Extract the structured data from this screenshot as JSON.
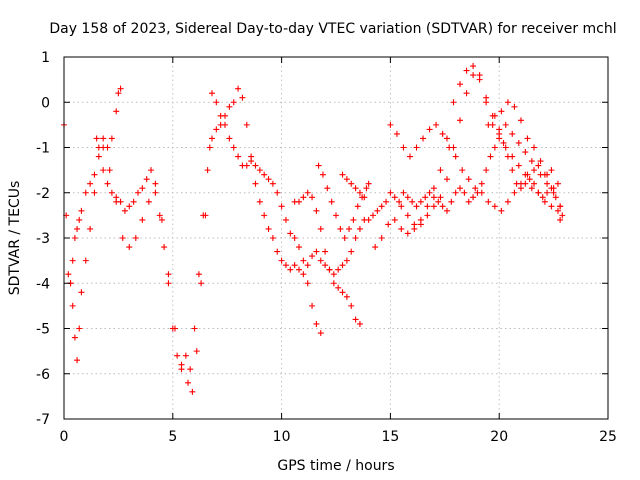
{
  "chart_data": {
    "type": "scatter",
    "title": "Day 158 of 2023, Sidereal Day-to-day VTEC variation (SDTVAR) for receiver mchl",
    "xlabel": "GPS time / hours",
    "ylabel": "SDTVAR / TECUs",
    "xlim": [
      0,
      25
    ],
    "ylim": [
      -7,
      1
    ],
    "xticks": [
      0,
      5,
      10,
      15,
      20,
      25
    ],
    "yticks": [
      -7,
      -6,
      -5,
      -4,
      -3,
      -2,
      -1,
      0,
      1
    ],
    "grid": true,
    "legend": "none",
    "marker": "plus",
    "color": "#ff0000",
    "series": [
      {
        "x": [
          0.0,
          0.1,
          0.2,
          0.3,
          0.4,
          0.5,
          0.6,
          0.7,
          0.8,
          1.0,
          1.2,
          1.4,
          1.6,
          1.8,
          2.0,
          2.2,
          2.4,
          2.6,
          2.8,
          3.0,
          3.2,
          3.4,
          3.6,
          3.8,
          4.0,
          4.2,
          4.4,
          4.6,
          4.8,
          5.0,
          5.2,
          5.4,
          5.6,
          5.8,
          6.0,
          6.2,
          6.4,
          6.6,
          6.8,
          7.0,
          7.2,
          7.4,
          7.6,
          7.8,
          8.0,
          8.2,
          8.4,
          8.6,
          8.8,
          9.0,
          9.2,
          9.4,
          9.6,
          9.8,
          10.0,
          10.2,
          10.4,
          10.6,
          10.8,
          11.0,
          11.2,
          11.4,
          11.6,
          11.8,
          12.0,
          12.2,
          12.4,
          12.6,
          12.8,
          13.0,
          13.2,
          13.4,
          13.6,
          13.8,
          14.0,
          14.2,
          14.4,
          14.6,
          14.8,
          15.0,
          15.2,
          15.4,
          15.6,
          15.8,
          16.0,
          16.2,
          16.4,
          16.6,
          16.8,
          17.0,
          17.2,
          17.4,
          17.6,
          17.8,
          18.0,
          18.2,
          18.4,
          18.6,
          18.8,
          19.0,
          19.2,
          19.4,
          19.6,
          19.8,
          20.0,
          20.2,
          20.4,
          20.6,
          20.8,
          21.0,
          21.2,
          21.4,
          21.6,
          21.8,
          22.0,
          22.2,
          22.4,
          22.6,
          22.8
        ],
        "y": [
          -0.5,
          -2.5,
          -3.8,
          -4.0,
          -3.5,
          -3.0,
          -2.8,
          -2.6,
          -2.4,
          -2.0,
          -1.8,
          -1.6,
          -1.2,
          -1.5,
          -1.8,
          -2.0,
          -2.1,
          -2.2,
          -2.4,
          -2.3,
          -2.2,
          -2.0,
          -1.9,
          -1.7,
          -1.5,
          -1.8,
          -2.5,
          -3.2,
          -4.0,
          -5.0,
          -5.6,
          -5.8,
          -5.6,
          -5.9,
          -5.0,
          -3.8,
          -2.5,
          -1.5,
          -0.8,
          -0.6,
          -0.5,
          -0.3,
          -0.1,
          0.0,
          0.3,
          0.1,
          -0.5,
          -1.2,
          -1.8,
          -2.2,
          -2.5,
          -2.8,
          -3.0,
          -3.3,
          -3.5,
          -3.6,
          -3.7,
          -3.6,
          -3.7,
          -3.8,
          -3.6,
          -3.4,
          -3.3,
          -3.5,
          -3.6,
          -3.7,
          -3.8,
          -3.7,
          -3.6,
          -3.5,
          -3.3,
          -3.0,
          -2.8,
          -2.6,
          -2.6,
          -2.5,
          -2.4,
          -2.3,
          -2.2,
          -2.0,
          -2.1,
          -2.2,
          -2.0,
          -2.1,
          -2.2,
          -2.3,
          -2.2,
          -2.1,
          -2.0,
          -2.1,
          -2.2,
          -2.3,
          -2.4,
          -2.2,
          -2.0,
          -1.9,
          -2.0,
          -2.2,
          -2.1,
          -2.0,
          -1.8,
          -1.5,
          -1.2,
          -1.0,
          -0.8,
          -0.9,
          -1.2,
          -1.5,
          -1.8,
          -1.9,
          -1.8,
          -1.7,
          -1.8,
          -2.0,
          -2.1,
          -2.0,
          -1.9,
          -2.1,
          -2.3
        ]
      },
      {
        "x": [
          0.3,
          0.4,
          0.5,
          0.6,
          0.7,
          0.8,
          1.0,
          1.2,
          1.4,
          1.6,
          1.8,
          2.0,
          2.2,
          2.4,
          2.5,
          2.6
        ],
        "y": [
          -4.0,
          -4.5,
          -5.2,
          -5.7,
          -5.0,
          -4.2,
          -3.5,
          -2.8,
          -2.0,
          -1.0,
          -0.8,
          -1.0,
          -0.8,
          -0.2,
          0.2,
          0.3
        ]
      },
      {
        "x": [
          1.5,
          1.8,
          2.1,
          2.4,
          2.7,
          3.0,
          3.3,
          3.6,
          3.9,
          4.2,
          4.5,
          4.8,
          5.1,
          5.4,
          5.7,
          5.9,
          6.1,
          6.3,
          6.5,
          6.7
        ],
        "y": [
          -0.8,
          -1.0,
          -1.5,
          -2.2,
          -3.0,
          -3.2,
          -3.0,
          -2.6,
          -2.2,
          -2.0,
          -2.6,
          -3.8,
          -5.0,
          -5.9,
          -6.2,
          -6.4,
          -5.5,
          -4.0,
          -2.5,
          -1.0
        ]
      },
      {
        "x": [
          6.8,
          7.0,
          7.2,
          7.4,
          7.6,
          7.8,
          8.0,
          8.2,
          8.4,
          8.6,
          8.8,
          9.0,
          9.2,
          9.4,
          9.6,
          9.8,
          10.0,
          10.2,
          10.4,
          10.6,
          10.8,
          11.0,
          11.2,
          11.4,
          11.6,
          11.8
        ],
        "y": [
          0.2,
          0.0,
          -0.3,
          -0.5,
          -0.8,
          -1.0,
          -1.2,
          -1.4,
          -1.4,
          -1.3,
          -1.4,
          -1.5,
          -1.6,
          -1.7,
          -1.8,
          -2.0,
          -2.3,
          -2.6,
          -2.9,
          -3.0,
          -3.2,
          -3.5,
          -4.0,
          -4.5,
          -4.9,
          -5.1
        ]
      },
      {
        "x": [
          10.6,
          10.8,
          11.0,
          11.2,
          11.4,
          11.6,
          11.8,
          12.0,
          12.2,
          12.4,
          12.6,
          12.8,
          13.0,
          13.2,
          13.4,
          13.6
        ],
        "y": [
          -2.2,
          -2.2,
          -2.1,
          -2.0,
          -2.1,
          -2.4,
          -2.8,
          -3.3,
          -3.7,
          -4.0,
          -4.1,
          -4.2,
          -4.3,
          -4.5,
          -4.8,
          -4.9
        ]
      },
      {
        "x": [
          11.7,
          11.9,
          12.1,
          12.3,
          12.5,
          12.7,
          12.9,
          13.1,
          13.3,
          13.5,
          13.7,
          13.9,
          14.0
        ],
        "y": [
          -1.4,
          -1.6,
          -1.9,
          -2.2,
          -2.5,
          -2.8,
          -3.0,
          -2.8,
          -2.6,
          -2.3,
          -2.1,
          -1.9,
          -1.8
        ]
      },
      {
        "x": [
          12.8,
          13.0,
          13.2,
          13.4,
          13.6,
          13.8
        ],
        "y": [
          -1.6,
          -1.7,
          -1.8,
          -1.9,
          -2.0,
          -2.1
        ]
      },
      {
        "x": [
          14.3,
          14.6,
          14.9,
          15.2,
          15.5,
          15.8,
          16.1,
          16.4,
          16.7,
          17.0,
          17.3,
          17.6,
          17.9,
          18.2,
          18.5,
          18.8,
          19.1,
          19.4,
          19.7,
          20.0,
          20.3,
          20.6,
          20.9,
          21.2,
          21.5,
          21.8,
          22.1,
          22.4,
          22.7,
          22.9
        ],
        "y": [
          -3.2,
          -3.0,
          -2.7,
          -2.6,
          -2.8,
          -2.9,
          -2.8,
          -2.7,
          -2.5,
          -2.3,
          -2.1,
          -1.7,
          -1.0,
          -0.4,
          0.2,
          0.6,
          0.6,
          0.1,
          -0.5,
          -0.7,
          -1.0,
          -1.2,
          -1.4,
          -1.6,
          -1.9,
          -2.0,
          -2.2,
          -2.3,
          -2.4,
          -2.5
        ]
      },
      {
        "x": [
          15.0,
          15.3,
          15.6,
          15.9,
          16.2,
          16.5,
          16.8,
          17.1,
          17.4,
          17.7,
          18.0,
          18.3,
          18.6,
          18.9,
          19.2,
          19.5,
          19.8,
          20.1,
          20.4,
          20.7,
          21.0,
          21.3,
          21.6,
          21.9,
          22.2,
          22.5,
          22.8
        ],
        "y": [
          -0.5,
          -0.7,
          -1.0,
          -1.2,
          -1.0,
          -0.8,
          -0.6,
          -0.5,
          -0.7,
          -1.0,
          -1.2,
          -1.5,
          -1.7,
          -1.9,
          -2.0,
          -2.2,
          -2.3,
          -2.4,
          -2.2,
          -2.0,
          -1.8,
          -1.6,
          -1.5,
          -1.6,
          -1.8,
          -2.0,
          -2.6
        ]
      },
      {
        "x": [
          15.5,
          15.8,
          16.1,
          16.4,
          16.7,
          17.0,
          17.3,
          17.6,
          17.9,
          18.2,
          18.5,
          18.8,
          19.1,
          19.4,
          19.7,
          20.0,
          20.3,
          20.6,
          20.9,
          21.2,
          21.5,
          21.8,
          22.1,
          22.4,
          22.7
        ],
        "y": [
          -2.3,
          -2.5,
          -2.7,
          -2.6,
          -2.3,
          -1.9,
          -1.5,
          -0.8,
          0.0,
          0.4,
          0.7,
          0.8,
          0.5,
          0.0,
          -0.3,
          -0.6,
          -0.5,
          -0.7,
          -0.9,
          -1.1,
          -1.3,
          -1.4,
          -1.6,
          -1.5,
          -1.8
        ]
      },
      {
        "x": [
          19.5,
          19.8,
          20.1,
          20.4,
          20.7,
          21.0,
          21.3,
          21.6,
          21.9,
          22.2,
          22.5,
          22.8
        ],
        "y": [
          -0.5,
          -0.3,
          -0.2,
          0.0,
          -0.1,
          -0.4,
          -0.8,
          -1.0,
          -1.3,
          -1.6,
          -1.9,
          -2.3
        ]
      }
    ]
  }
}
